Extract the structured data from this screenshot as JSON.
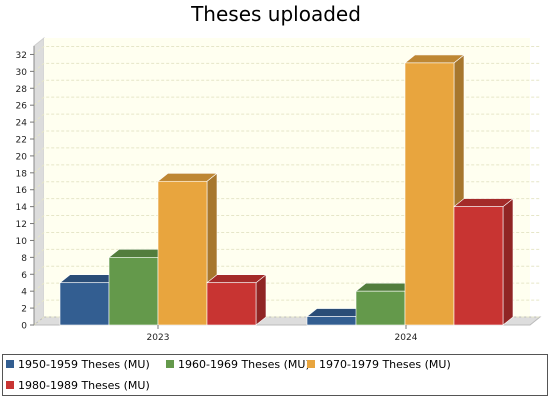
{
  "chart_data": {
    "type": "bar",
    "title": "Theses uploaded",
    "categories": [
      "2023",
      "2024"
    ],
    "series": [
      {
        "name": "1950-1959 Theses (MU)",
        "values": [
          5,
          1
        ],
        "color": "#335e91"
      },
      {
        "name": "1960-1969 Theses (MU)",
        "values": [
          8,
          4
        ],
        "color": "#64994b"
      },
      {
        "name": "1970-1979 Theses (MU)",
        "values": [
          17,
          31
        ],
        "color": "#e8a53e"
      },
      {
        "name": "1980-1989 Theses (MU)",
        "values": [
          5,
          14
        ],
        "color": "#c83432"
      }
    ],
    "ylim": [
      0,
      33
    ],
    "yticks": [
      "0",
      "2",
      "4",
      "6",
      "8",
      "10",
      "12",
      "14",
      "16",
      "18",
      "20",
      "22",
      "24",
      "26",
      "28",
      "30",
      "32"
    ],
    "grid": true,
    "background": "#fffff0",
    "legend_position": "bottom",
    "render": "3d"
  }
}
